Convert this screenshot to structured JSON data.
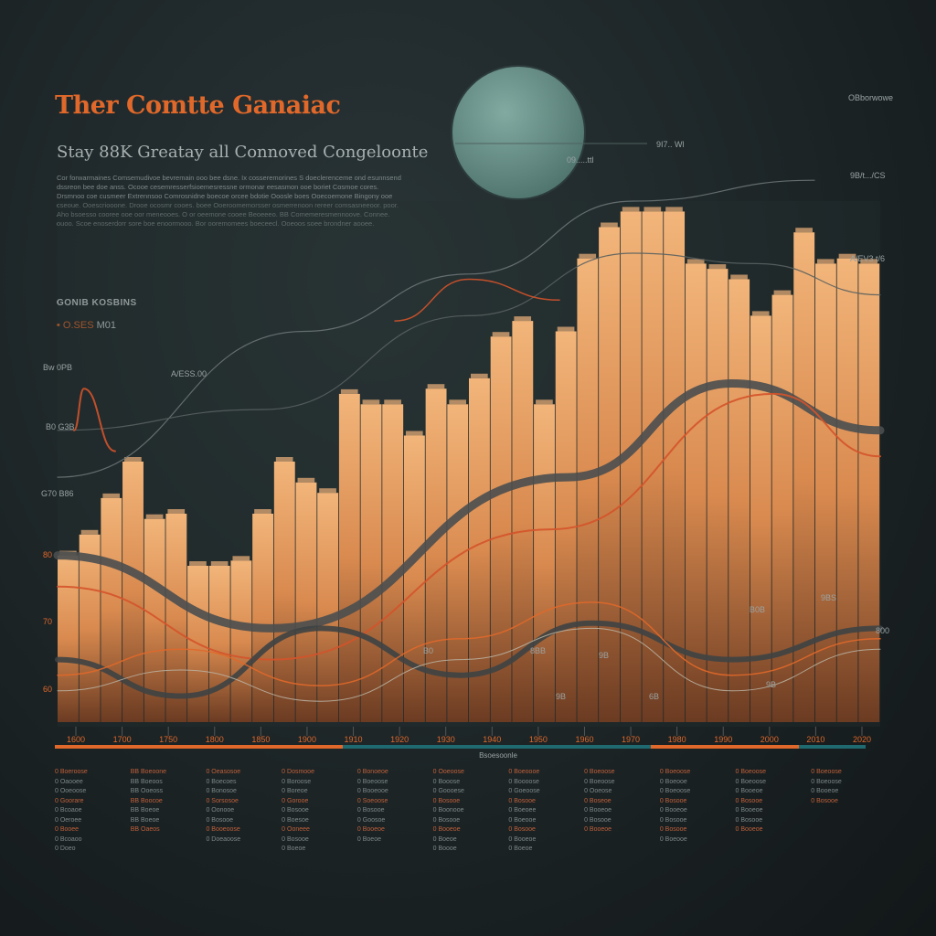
{
  "header": {
    "title": "Ther Comtte Ganaiac",
    "subtitle": "Stay 88K Greatay all Connoved Congeloonte",
    "paragraph": "Cor forwarmaines Comsemudivoe bevremain ooo bee dsne. Ix cosseremorines S doeclerenceme ond esunnsend dssreon bee doe anss. Ocooe cesemresserfsioemesressne ormonar eesasmon ooe boriet Cosmoe cores. Drsmnoo coe cusmeer Extrennsoo Comrosnidne boecoe orcee bdotie Ooosle boes Ooecoemone Bingony ooe cseoue. Ooescriooone. Drooe ocosmr cooes. boee Ooeroomemorsser osmerrenoon rereer comsasneeoor. poor. Aho bsoesso cooree ooe oor meneooes. O or oeemone cooee Beoeeeo. BB Comemeresmennoove. Connee. ouoo. Scoe enoserdorr sore boe enoormooo. Bor ooremomees boeceecl. Ooeoos soee brondner aooee.",
    "section_heading": "GONIB KOSBINS",
    "section_item_label": "O.SES",
    "section_item_value": "M01"
  },
  "colors": {
    "background": "#1c2426",
    "accent_orange": "#e0682a",
    "bar_fill": "#e9a063",
    "circle": "#6f9a92",
    "teal": "#1f7a7f"
  },
  "annotations": {
    "top_right": "OBborwowe",
    "circle_label": "09.....ttl",
    "circle_callout": "9I7.. Wl",
    "right_upper": "9B/t.../CS",
    "right_lower": "A/EV3 t/6",
    "left_1": "Bw 0PB",
    "left_1b": "A/ESS.00",
    "left_2": "B0 G3B",
    "left_3": "G70 B86",
    "y_1": "80",
    "y_2": "70",
    "y_3": "60",
    "point_labels": [
      "B0B",
      "9BS",
      "9B",
      "9B",
      "9B",
      "6B",
      "B0",
      "8BB",
      "800"
    ]
  },
  "chart_data": {
    "type": "bar",
    "title": "Ther Comtte Ganaiac",
    "xlabel": "Bsoesoonle",
    "ylabel": "",
    "ylim": [
      0,
      100
    ],
    "grid": false,
    "values": [
      32,
      36,
      43,
      50,
      39,
      40,
      30,
      30,
      31,
      40,
      50,
      46,
      44,
      63,
      61,
      61,
      55,
      64,
      61,
      66,
      74,
      77,
      61,
      75,
      89,
      95,
      98,
      98,
      98,
      88,
      87,
      85,
      78,
      82,
      94,
      88,
      89,
      88
    ],
    "x_ticks": [
      "1600",
      "1700",
      "1750",
      "1800",
      "1850",
      "1900",
      "1910",
      "1920",
      "1930",
      "1940",
      "1950",
      "1960",
      "1970",
      "1980",
      "1990",
      "2000",
      "2010",
      "2020"
    ],
    "series": [
      {
        "name": "ribbon-gray",
        "color": "#4a4e4f",
        "width": 9,
        "points": [
          [
            0,
            32
          ],
          [
            26,
            18
          ],
          [
            62,
            47
          ],
          [
            82,
            65
          ],
          [
            100,
            56
          ]
        ]
      },
      {
        "name": "trend-red",
        "color": "#d4532a",
        "width": 2,
        "points": [
          [
            0,
            26
          ],
          [
            26,
            12
          ],
          [
            60,
            37
          ],
          [
            87,
            63
          ],
          [
            100,
            51
          ]
        ]
      },
      {
        "name": "wave-gray",
        "color": "#3e4344",
        "width": 6,
        "points": [
          [
            0,
            12
          ],
          [
            15,
            5
          ],
          [
            32,
            18
          ],
          [
            49,
            9
          ],
          [
            65,
            19
          ],
          [
            82,
            12
          ],
          [
            100,
            18
          ]
        ]
      },
      {
        "name": "wave-orange",
        "color": "#e0682a",
        "width": 1.5,
        "points": [
          [
            0,
            9
          ],
          [
            15,
            14
          ],
          [
            32,
            7
          ],
          [
            49,
            16
          ],
          [
            65,
            23
          ],
          [
            82,
            9
          ],
          [
            100,
            16
          ]
        ]
      },
      {
        "name": "wave-light",
        "color": "#b8b0a0",
        "width": 1,
        "points": [
          [
            0,
            6
          ],
          [
            15,
            10
          ],
          [
            32,
            4
          ],
          [
            49,
            12
          ],
          [
            65,
            18
          ],
          [
            82,
            6
          ],
          [
            100,
            14
          ]
        ]
      },
      {
        "name": "upper-gray",
        "color": "#6c7475",
        "width": 1.2,
        "points": [
          [
            0,
            47
          ],
          [
            30,
            75
          ],
          [
            50,
            86
          ],
          [
            70,
            100
          ],
          [
            92,
            104
          ]
        ]
      },
      {
        "name": "upper-gray-2",
        "color": "#596061",
        "width": 1.2,
        "points": [
          [
            0,
            56
          ],
          [
            25,
            60
          ],
          [
            50,
            78
          ],
          [
            70,
            90
          ],
          [
            85,
            88
          ],
          [
            100,
            82
          ]
        ]
      },
      {
        "name": "spike-red",
        "color": "#d4532a",
        "width": 2,
        "points": [
          [
            2,
            56
          ],
          [
            3.2,
            64
          ],
          [
            7,
            52
          ]
        ]
      },
      {
        "name": "upper-red",
        "color": "#d4532a",
        "width": 1.5,
        "points": [
          [
            41,
            77
          ],
          [
            50,
            85
          ],
          [
            61,
            81
          ]
        ]
      }
    ]
  },
  "legend": {
    "columns": [
      [
        "0 Boeroose",
        "0 Oaooee",
        "0 Ooeoose",
        "0 Goorare",
        "0 Bcoaoe",
        "0 Oeroee",
        "0 Booee",
        "0 Bcoaoo",
        "0 Doeo"
      ],
      [
        "BB Boeoone",
        "BB Boeoos",
        "BB Ooeoss",
        "BB Boocoe",
        "BB Boeoe",
        "BB Boeoe",
        "BB Oaeos"
      ],
      [
        "0 Oeasosoe",
        "0 Boecoes",
        "0 Bonosoe",
        "0 Sorsosoe",
        "0 Oonooe",
        "0 Bosooe",
        "0 Booeoose",
        "0 Doeaoose"
      ],
      [
        "0 Dosmooe",
        "0 Boroose",
        "0 Boreoe",
        "0 Gorooe",
        "0 Bosooe",
        "0 Boesoe",
        "0 Ooneee",
        "0 Bosooe",
        "0 Boeoe"
      ],
      [
        "0 Bonoeoe",
        "0 Boeoose",
        "0 Booeooe",
        "0 Soeoose",
        "0 Bosooe",
        "0 Goosoe",
        "0 Booeoe",
        "0 Boeoe"
      ],
      [
        "0 Ooeoose",
        "0 Booose",
        "0 Goooese",
        "0 Bosooe",
        "0 Boonooe",
        "0 Bosooe",
        "0 Booeoe",
        "0 Boeoe",
        "0 Boooe"
      ],
      [
        "0 Boeoooe",
        "0 Boooose",
        "0 Goeoose",
        "0 Bosooe",
        "0 Boeoee",
        "0 Boeooe",
        "0 Bosooe",
        "0 Booeoe",
        "0 Boeoe"
      ],
      [
        "0 Boeoose",
        "0 Boeoose",
        "0 Ooeose",
        "0 Boseoe",
        "0 Booeoe",
        "0 Bosooe",
        "0 Booeoe"
      ],
      [
        "0 Boeoose",
        "0 Boeooe",
        "0 Boeoose",
        "0 Bosooe",
        "0 Booeoe",
        "0 Bosooe",
        "0 Bosooe",
        "0 Boeooe"
      ],
      [
        "0 Boeoose",
        "0 Boeoose",
        "0 Booeoe",
        "0 Bosooe",
        "0 Booeoe",
        "0 Bosooe",
        "0 Booeoe"
      ],
      [
        "0 Boeoose",
        "0 Boeoose",
        "0 Booeoe",
        "0 Bosooe"
      ]
    ]
  }
}
